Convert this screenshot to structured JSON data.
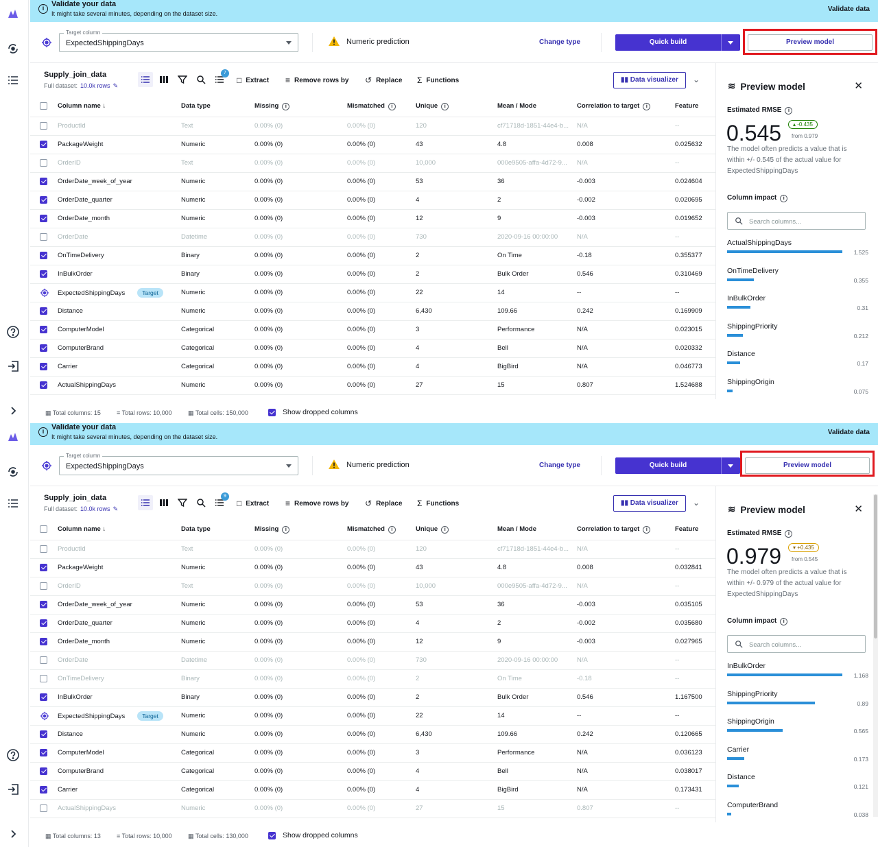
{
  "colors": {
    "primary": "#4633d0",
    "link": "#3630b0",
    "banner": "#a6e7fa",
    "impact_bar": "#2a8fd8",
    "highlight": "#e0191f",
    "target_badge": "#b9e4f8"
  },
  "screens": [
    {
      "banner": {
        "title": "Validate your data",
        "subtitle": "It might take several minutes, depending on the dataset size.",
        "action": "Validate data"
      },
      "target": {
        "label": "Target column",
        "value": "ExpectedShippingDays",
        "prediction": "Numeric prediction",
        "change_type": "Change type",
        "quick_build": "Quick build",
        "preview_model": "Preview model"
      },
      "dataset": {
        "name": "Supply_join_data",
        "full_label": "Full dataset:",
        "rows": "10.0k rows",
        "badge_count": "7"
      },
      "toolbar": {
        "extract": "Extract",
        "remove_rows": "Remove rows by",
        "replace": "Replace",
        "functions": "Functions",
        "data_visualizer": "Data visualizer"
      },
      "headers": [
        "Column name",
        "Data type",
        "Missing",
        "Mismatched",
        "Unique",
        "Mean / Mode",
        "Correlation to target",
        "Feature"
      ],
      "rows": [
        {
          "state": "dropped",
          "name": "ProductId",
          "type": "Text",
          "missing": "0.00% (0)",
          "mismatched": "0.00% (0)",
          "unique": "120",
          "mean": "cf71718d-1851-44e4-b...",
          "corr": "N/A",
          "feature": "--"
        },
        {
          "state": "on",
          "name": "PackageWeight",
          "type": "Numeric",
          "missing": "0.00% (0)",
          "mismatched": "0.00% (0)",
          "unique": "43",
          "mean": "4.8",
          "corr": "0.008",
          "feature": "0.025632"
        },
        {
          "state": "dropped",
          "name": "OrderID",
          "type": "Text",
          "missing": "0.00% (0)",
          "mismatched": "0.00% (0)",
          "unique": "10,000",
          "mean": "000e9505-affa-4d72-9...",
          "corr": "N/A",
          "feature": "--"
        },
        {
          "state": "on",
          "name": "OrderDate_week_of_year",
          "type": "Numeric",
          "missing": "0.00% (0)",
          "mismatched": "0.00% (0)",
          "unique": "53",
          "mean": "36",
          "corr": "-0.003",
          "feature": "0.024604"
        },
        {
          "state": "on",
          "name": "OrderDate_quarter",
          "type": "Numeric",
          "missing": "0.00% (0)",
          "mismatched": "0.00% (0)",
          "unique": "4",
          "mean": "2",
          "corr": "-0.002",
          "feature": "0.020695"
        },
        {
          "state": "on",
          "name": "OrderDate_month",
          "type": "Numeric",
          "missing": "0.00% (0)",
          "mismatched": "0.00% (0)",
          "unique": "12",
          "mean": "9",
          "corr": "-0.003",
          "feature": "0.019652"
        },
        {
          "state": "dropped",
          "name": "OrderDate",
          "type": "Datetime",
          "missing": "0.00% (0)",
          "mismatched": "0.00% (0)",
          "unique": "730",
          "mean": "2020-09-16 00:00:00",
          "corr": "N/A",
          "feature": "--"
        },
        {
          "state": "on",
          "name": "OnTimeDelivery",
          "type": "Binary",
          "missing": "0.00% (0)",
          "mismatched": "0.00% (0)",
          "unique": "2",
          "mean": "On Time",
          "corr": "-0.18",
          "feature": "0.355377"
        },
        {
          "state": "on",
          "name": "InBulkOrder",
          "type": "Binary",
          "missing": "0.00% (0)",
          "mismatched": "0.00% (0)",
          "unique": "2",
          "mean": "Bulk Order",
          "corr": "0.546",
          "feature": "0.310469"
        },
        {
          "state": "target",
          "name": "ExpectedShippingDays",
          "badge": "Target",
          "type": "Numeric",
          "missing": "0.00% (0)",
          "mismatched": "0.00% (0)",
          "unique": "22",
          "mean": "14",
          "corr": "--",
          "feature": "--"
        },
        {
          "state": "on",
          "name": "Distance",
          "type": "Numeric",
          "missing": "0.00% (0)",
          "mismatched": "0.00% (0)",
          "unique": "6,430",
          "mean": "109.66",
          "corr": "0.242",
          "feature": "0.169909"
        },
        {
          "state": "on",
          "name": "ComputerModel",
          "type": "Categorical",
          "missing": "0.00% (0)",
          "mismatched": "0.00% (0)",
          "unique": "3",
          "mean": "Performance",
          "corr": "N/A",
          "feature": "0.023015"
        },
        {
          "state": "on",
          "name": "ComputerBrand",
          "type": "Categorical",
          "missing": "0.00% (0)",
          "mismatched": "0.00% (0)",
          "unique": "4",
          "mean": "Bell",
          "corr": "N/A",
          "feature": "0.020332"
        },
        {
          "state": "on",
          "name": "Carrier",
          "type": "Categorical",
          "missing": "0.00% (0)",
          "mismatched": "0.00% (0)",
          "unique": "4",
          "mean": "BigBird",
          "corr": "N/A",
          "feature": "0.046773"
        },
        {
          "state": "on",
          "name": "ActualShippingDays",
          "type": "Numeric",
          "missing": "0.00% (0)",
          "mismatched": "0.00% (0)",
          "unique": "27",
          "mean": "15",
          "corr": "0.807",
          "feature": "1.524688"
        }
      ],
      "footer": {
        "columns": "Total columns: 15",
        "rows": "Total rows: 10,000",
        "cells": "Total cells: 150,000",
        "show_dropped": "Show dropped columns"
      },
      "panel": {
        "title": "Preview model",
        "rmse_label": "Estimated RMSE",
        "rmse": "0.545",
        "delta": "-0.435",
        "delta_dir": "down",
        "from": "from 0.979",
        "description": "The model often predicts a value that is within +/- 0.545 of the actual value for ExpectedShippingDays",
        "impact_label": "Column impact",
        "search_placeholder": "Search columns...",
        "impacts": [
          {
            "name": "ActualShippingDays",
            "value": "1.525",
            "fraction": 1.0
          },
          {
            "name": "OnTimeDelivery",
            "value": "0.355",
            "fraction": 0.233
          },
          {
            "name": "InBulkOrder",
            "value": "0.31",
            "fraction": 0.203
          },
          {
            "name": "ShippingPriority",
            "value": "0.212",
            "fraction": 0.139
          },
          {
            "name": "Distance",
            "value": "0.17",
            "fraction": 0.111
          },
          {
            "name": "ShippingOrigin",
            "value": "0.075",
            "fraction": 0.049
          }
        ]
      }
    },
    {
      "banner": {
        "title": "Validate your data",
        "subtitle": "It might take several minutes, depending on the dataset size.",
        "action": "Validate data"
      },
      "target": {
        "label": "Target column",
        "value": "ExpectedShippingDays",
        "prediction": "Numeric prediction",
        "change_type": "Change type",
        "quick_build": "Quick build",
        "preview_model": "Preview model"
      },
      "dataset": {
        "name": "Supply_join_data",
        "full_label": "Full dataset:",
        "rows": "10.0k rows",
        "badge_count": "9"
      },
      "toolbar": {
        "extract": "Extract",
        "remove_rows": "Remove rows by",
        "replace": "Replace",
        "functions": "Functions",
        "data_visualizer": "Data visualizer"
      },
      "headers": [
        "Column name",
        "Data type",
        "Missing",
        "Mismatched",
        "Unique",
        "Mean / Mode",
        "Correlation to target",
        "Feature"
      ],
      "rows": [
        {
          "state": "dropped",
          "name": "ProductId",
          "type": "Text",
          "missing": "0.00% (0)",
          "mismatched": "0.00% (0)",
          "unique": "120",
          "mean": "cf71718d-1851-44e4-b...",
          "corr": "N/A",
          "feature": "--"
        },
        {
          "state": "on",
          "name": "PackageWeight",
          "type": "Numeric",
          "missing": "0.00% (0)",
          "mismatched": "0.00% (0)",
          "unique": "43",
          "mean": "4.8",
          "corr": "0.008",
          "feature": "0.032841"
        },
        {
          "state": "dropped",
          "name": "OrderID",
          "type": "Text",
          "missing": "0.00% (0)",
          "mismatched": "0.00% (0)",
          "unique": "10,000",
          "mean": "000e9505-affa-4d72-9...",
          "corr": "N/A",
          "feature": "--"
        },
        {
          "state": "on",
          "name": "OrderDate_week_of_year",
          "type": "Numeric",
          "missing": "0.00% (0)",
          "mismatched": "0.00% (0)",
          "unique": "53",
          "mean": "36",
          "corr": "-0.003",
          "feature": "0.035105"
        },
        {
          "state": "on",
          "name": "OrderDate_quarter",
          "type": "Numeric",
          "missing": "0.00% (0)",
          "mismatched": "0.00% (0)",
          "unique": "4",
          "mean": "2",
          "corr": "-0.002",
          "feature": "0.035680"
        },
        {
          "state": "on",
          "name": "OrderDate_month",
          "type": "Numeric",
          "missing": "0.00% (0)",
          "mismatched": "0.00% (0)",
          "unique": "12",
          "mean": "9",
          "corr": "-0.003",
          "feature": "0.027965"
        },
        {
          "state": "dropped",
          "name": "OrderDate",
          "type": "Datetime",
          "missing": "0.00% (0)",
          "mismatched": "0.00% (0)",
          "unique": "730",
          "mean": "2020-09-16 00:00:00",
          "corr": "N/A",
          "feature": "--"
        },
        {
          "state": "dropped",
          "name": "OnTimeDelivery",
          "type": "Binary",
          "missing": "0.00% (0)",
          "mismatched": "0.00% (0)",
          "unique": "2",
          "mean": "On Time",
          "corr": "-0.18",
          "feature": "--"
        },
        {
          "state": "on",
          "name": "InBulkOrder",
          "type": "Binary",
          "missing": "0.00% (0)",
          "mismatched": "0.00% (0)",
          "unique": "2",
          "mean": "Bulk Order",
          "corr": "0.546",
          "feature": "1.167500"
        },
        {
          "state": "target",
          "name": "ExpectedShippingDays",
          "badge": "Target",
          "type": "Numeric",
          "missing": "0.00% (0)",
          "mismatched": "0.00% (0)",
          "unique": "22",
          "mean": "14",
          "corr": "--",
          "feature": "--"
        },
        {
          "state": "on",
          "name": "Distance",
          "type": "Numeric",
          "missing": "0.00% (0)",
          "mismatched": "0.00% (0)",
          "unique": "6,430",
          "mean": "109.66",
          "corr": "0.242",
          "feature": "0.120665"
        },
        {
          "state": "on",
          "name": "ComputerModel",
          "type": "Categorical",
          "missing": "0.00% (0)",
          "mismatched": "0.00% (0)",
          "unique": "3",
          "mean": "Performance",
          "corr": "N/A",
          "feature": "0.036123"
        },
        {
          "state": "on",
          "name": "ComputerBrand",
          "type": "Categorical",
          "missing": "0.00% (0)",
          "mismatched": "0.00% (0)",
          "unique": "4",
          "mean": "Bell",
          "corr": "N/A",
          "feature": "0.038017"
        },
        {
          "state": "on",
          "name": "Carrier",
          "type": "Categorical",
          "missing": "0.00% (0)",
          "mismatched": "0.00% (0)",
          "unique": "4",
          "mean": "BigBird",
          "corr": "N/A",
          "feature": "0.173431"
        },
        {
          "state": "dropped",
          "name": "ActualShippingDays",
          "type": "Numeric",
          "missing": "0.00% (0)",
          "mismatched": "0.00% (0)",
          "unique": "27",
          "mean": "15",
          "corr": "0.807",
          "feature": "--"
        }
      ],
      "footer": {
        "columns": "Total columns: 13",
        "rows": "Total rows: 10,000",
        "cells": "Total cells: 130,000",
        "show_dropped": "Show dropped columns"
      },
      "panel": {
        "title": "Preview model",
        "rmse_label": "Estimated RMSE",
        "rmse": "0.979",
        "delta": "+0.435",
        "delta_dir": "up",
        "from": "from 0.545",
        "description": "The model often predicts a value that is within +/- 0.979 of the actual value for ExpectedShippingDays",
        "impact_label": "Column impact",
        "search_placeholder": "Search columns...",
        "impacts": [
          {
            "name": "InBulkOrder",
            "value": "1.168",
            "fraction": 1.0
          },
          {
            "name": "ShippingPriority",
            "value": "0.89",
            "fraction": 0.762
          },
          {
            "name": "ShippingOrigin",
            "value": "0.565",
            "fraction": 0.484
          },
          {
            "name": "Carrier",
            "value": "0.173",
            "fraction": 0.148
          },
          {
            "name": "Distance",
            "value": "0.121",
            "fraction": 0.104
          },
          {
            "name": "ComputerBrand",
            "value": "0.038",
            "fraction": 0.033
          }
        ]
      }
    }
  ]
}
